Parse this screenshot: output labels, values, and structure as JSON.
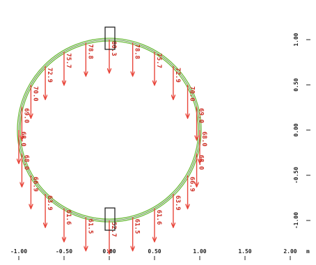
{
  "diagram": {
    "type": "ring-load-diagram",
    "structure": {
      "shape": "circle",
      "radius": 1.0,
      "center": [
        0,
        0
      ]
    },
    "colors": {
      "load_arrow": "#e8453a",
      "load_label": "#cc2a20",
      "ring": "#6cbb3c",
      "ring_dark": "#3e7d23",
      "axis": "#222222",
      "highlight_box": "#111111"
    },
    "x_axis": {
      "ticks": [
        -1.0,
        -0.5,
        0.0,
        0.5,
        1.0,
        1.5,
        2.0
      ],
      "tick_labels": [
        "-1.00",
        "-0.50",
        "0.00",
        "0.50",
        "1.00",
        "1.50",
        "2.00"
      ],
      "unit": "m"
    },
    "y_axis": {
      "ticks": [
        1.0,
        0.5,
        0.0,
        -0.5,
        -1.0
      ],
      "tick_labels": [
        "1.00",
        "0.50",
        "0.00",
        "-0.50",
        "-1.00"
      ]
    },
    "loads": [
      {
        "angle_deg": 90,
        "label": "80.3",
        "highlight": true
      },
      {
        "angle_deg": 105,
        "label": "78.8"
      },
      {
        "angle_deg": 75,
        "label": "78.8"
      },
      {
        "angle_deg": 120,
        "label": "75.7"
      },
      {
        "angle_deg": 60,
        "label": "75.7"
      },
      {
        "angle_deg": 135,
        "label": "72.9"
      },
      {
        "angle_deg": 45,
        "label": "72.9"
      },
      {
        "angle_deg": 150,
        "label": "70.0"
      },
      {
        "angle_deg": 30,
        "label": "70.0"
      },
      {
        "angle_deg": 165,
        "label": "69.0"
      },
      {
        "angle_deg": 15,
        "label": "69.0"
      },
      {
        "angle_deg": 180,
        "label": "68.0"
      },
      {
        "angle_deg": 0,
        "label": "68.0"
      },
      {
        "angle_deg": 195,
        "label": "68.0"
      },
      {
        "angle_deg": 345,
        "label": "68.0"
      },
      {
        "angle_deg": 210,
        "label": "66.9"
      },
      {
        "angle_deg": 330,
        "label": "66.9"
      },
      {
        "angle_deg": 225,
        "label": "63.9"
      },
      {
        "angle_deg": 315,
        "label": "63.9"
      },
      {
        "angle_deg": 240,
        "label": "61.6"
      },
      {
        "angle_deg": 300,
        "label": "61.6"
      },
      {
        "angle_deg": 255,
        "label": "61.5"
      },
      {
        "angle_deg": 285,
        "label": "61.5"
      },
      {
        "angle_deg": 270,
        "label": "52.7",
        "highlight": true
      }
    ]
  }
}
